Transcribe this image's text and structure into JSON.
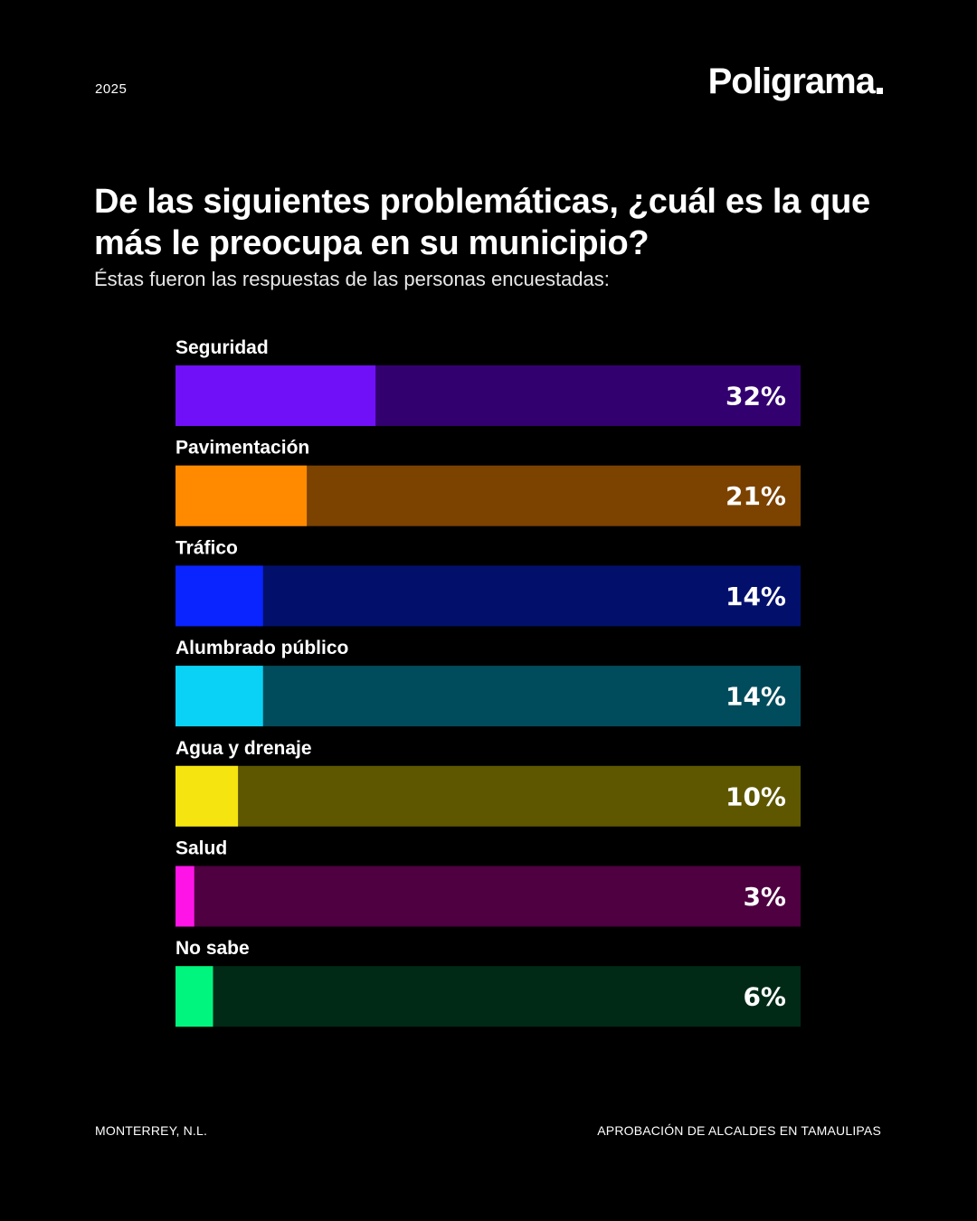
{
  "header": {
    "year": "2025",
    "brand": "Poligrama"
  },
  "title": "De las siguientes problemáticas, ¿cuál es la que más le preocupa en su municipio?",
  "subtitle": "Éstas fueron las respuestas de las personas encuestadas:",
  "footer": {
    "left": "MONTERREY, N.L.",
    "right": "APROBACIÓN DE ALCALDES EN TAMAULIPAS"
  },
  "chart_data": {
    "type": "bar",
    "orientation": "horizontal",
    "categories": [
      "Seguridad",
      "Pavimentación",
      "Tráfico",
      "Alumbrado público",
      "Agua y drenaje",
      "Salud",
      "No sabe"
    ],
    "values": [
      32,
      21,
      14,
      14,
      10,
      3,
      6
    ],
    "value_labels": [
      "32%",
      "21%",
      "14%",
      "14%",
      "10%",
      "3%",
      "6%"
    ],
    "xlim": [
      0,
      100
    ],
    "unit": "%",
    "colors": [
      "#7010f8",
      "#ff8a00",
      "#0a24ff",
      "#0ad2f6",
      "#f6e410",
      "#ff14e8",
      "#00f57e"
    ],
    "track_colors": [
      "#330070",
      "#7b4200",
      "#02106c",
      "#004c5c",
      "#5e5700",
      "#4e0040",
      "#002a16"
    ]
  }
}
